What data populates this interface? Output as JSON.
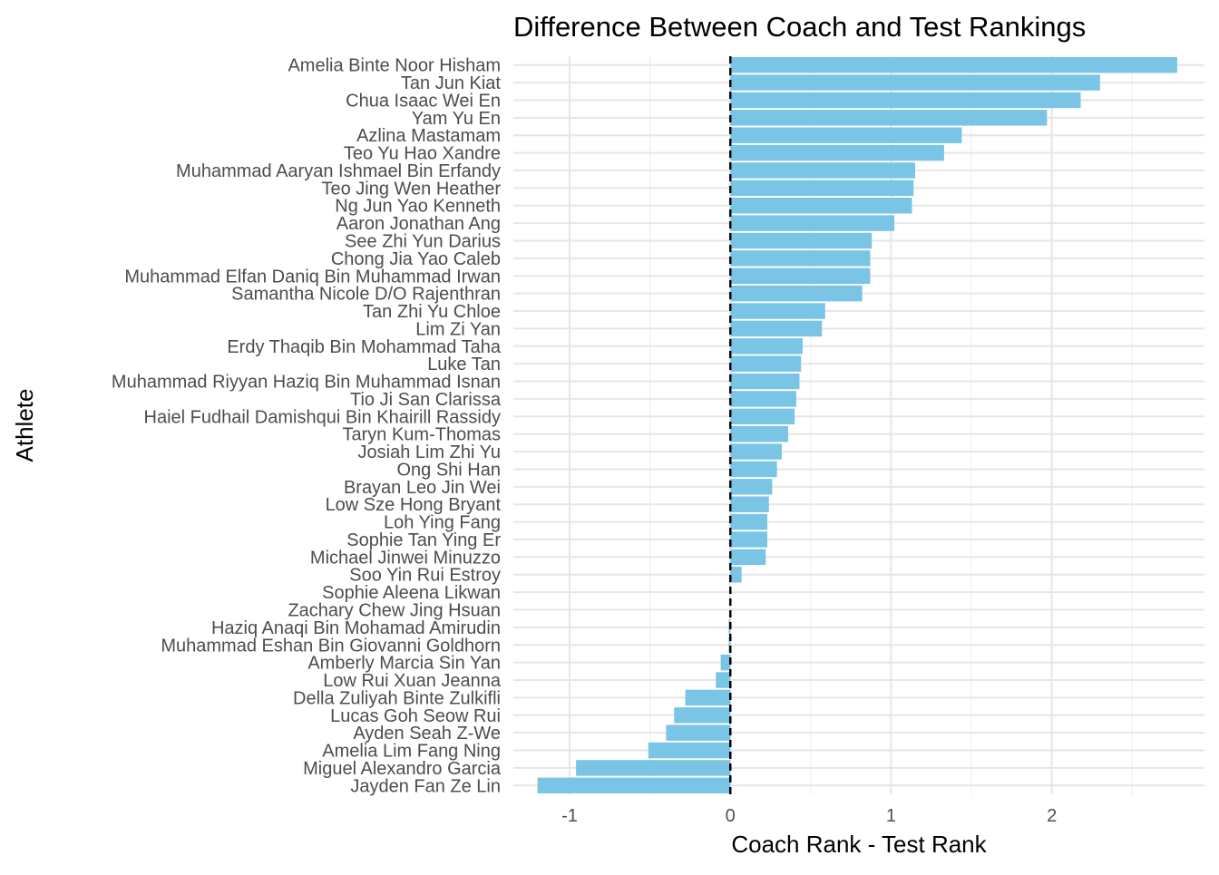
{
  "chart_data": {
    "type": "bar",
    "orientation": "horizontal",
    "title": "Difference Between Coach and Test Rankings",
    "xlabel": "Coach Rank - Test Rank",
    "ylabel": "Athlete",
    "xlim": [
      -1.35,
      2.95
    ],
    "xticks": [
      -1,
      0,
      1,
      2
    ],
    "grid": true,
    "legend": "none",
    "bar_color": "#7ac4e6",
    "reference_line": {
      "x": 0,
      "style": "dashed",
      "color": "#000000"
    },
    "categories": [
      "Amelia Binte Noor Hisham",
      "Tan Jun Kiat",
      "Chua Isaac Wei En",
      "Yam Yu En",
      "Azlina Mastamam",
      "Teo Yu Hao Xandre",
      "Muhammad Aaryan Ishmael Bin Erfandy",
      "Teo Jing Wen Heather",
      "Ng Jun Yao Kenneth",
      "Aaron Jonathan Ang",
      "See Zhi Yun Darius",
      "Chong Jia Yao Caleb",
      "Muhammad Elfan Daniq Bin Muhammad Irwan",
      "Samantha Nicole D/O Rajenthran",
      "Tan Zhi Yu Chloe",
      "Lim Zi Yan",
      "Erdy Thaqib Bin Mohammad Taha",
      "Luke Tan",
      "Muhammad Riyyan Haziq Bin Muhammad Isnan",
      "Tio Ji San Clarissa",
      "Haiel Fudhail Damishqui Bin Khairill Rassidy",
      "Taryn Kum-Thomas",
      "Josiah Lim Zhi Yu",
      "Ong Shi Han",
      "Brayan Leo Jin Wei",
      "Low Sze Hong Bryant",
      "Loh Ying Fang",
      "Sophie Tan Ying Er",
      "Michael Jinwei Minuzzo",
      "Soo Yin Rui Estroy",
      "Sophie Aleena Likwan",
      "Zachary Chew Jing Hsuan",
      "Haziq Anaqi Bin Mohamad Amirudin",
      "Muhammad Eshan Bin Giovanni Goldhorn",
      "Amberly Marcia Sin Yan",
      "Low Rui Xuan Jeanna",
      "Della Zuliyah Binte Zulkifli",
      "Lucas Goh Seow Rui",
      "Ayden Seah Z-We",
      "Amelia Lim Fang Ning",
      "Miguel Alexandro Garcia",
      "Jayden Fan Ze Lin"
    ],
    "values": [
      2.78,
      2.3,
      2.18,
      1.97,
      1.44,
      1.33,
      1.15,
      1.14,
      1.13,
      1.02,
      0.88,
      0.87,
      0.87,
      0.82,
      0.59,
      0.57,
      0.45,
      0.44,
      0.43,
      0.41,
      0.4,
      0.36,
      0.32,
      0.29,
      0.26,
      0.24,
      0.23,
      0.23,
      0.22,
      0.07,
      0.0,
      0.0,
      -0.01,
      -0.01,
      -0.06,
      -0.09,
      -0.28,
      -0.35,
      -0.4,
      -0.51,
      -0.96,
      -1.2
    ]
  }
}
